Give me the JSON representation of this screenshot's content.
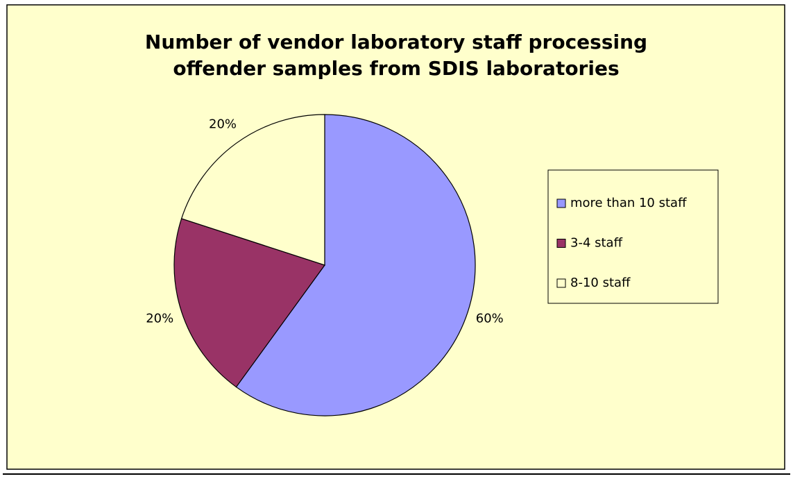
{
  "chart_data": {
    "type": "pie",
    "title": "Number of vendor laboratory staff processing offender samples from SDIS laboratories",
    "categories": [
      "more than 10 staff",
      "3-4 staff",
      "8-10 staff"
    ],
    "values": [
      60,
      20,
      20
    ],
    "value_labels": [
      "60%",
      "20%",
      "20%"
    ],
    "colors": [
      "#9999ff",
      "#993366",
      "#ffffcc"
    ],
    "legend": "right"
  }
}
